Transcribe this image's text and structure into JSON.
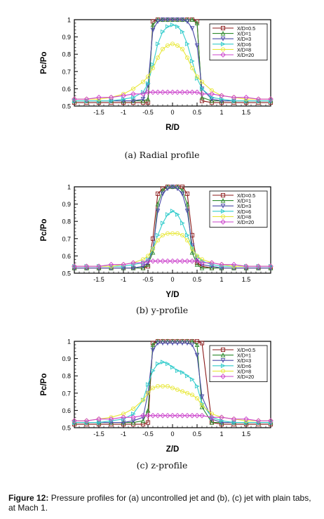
{
  "chart_data": [
    {
      "type": "line",
      "subcaption": "(a) Radial profile",
      "xlabel": "R/D",
      "ylabel": "Pc/Po",
      "xlim": [
        -2,
        2
      ],
      "ylim": [
        0.5,
        1.0
      ],
      "xticks": [
        "-1.5",
        "-1",
        "-0.5",
        "0",
        "0.5",
        "1",
        "1.5"
      ],
      "yticks": [
        "0.5",
        "0.6",
        "0.7",
        "0.8",
        "0.9",
        "1"
      ],
      "x": [
        -2.0,
        -1.75,
        -1.5,
        -1.25,
        -1.0,
        -0.8,
        -0.6,
        -0.5,
        -0.4,
        -0.3,
        -0.2,
        -0.1,
        0.0,
        0.1,
        0.2,
        0.3,
        0.4,
        0.5,
        0.6,
        0.8,
        1.0,
        1.25,
        1.5,
        1.75,
        2.0
      ],
      "legend_position": "top-right",
      "series": [
        {
          "name": "X/D=0.5",
          "color": "#8b1a1a",
          "marker": "square",
          "values": [
            0.52,
            0.52,
            0.52,
            0.52,
            0.52,
            0.52,
            0.52,
            0.52,
            0.99,
            1.0,
            1.0,
            1.0,
            1.0,
            1.0,
            1.0,
            1.0,
            1.0,
            0.99,
            0.53,
            0.52,
            0.52,
            0.52,
            0.52,
            0.52,
            0.52
          ]
        },
        {
          "name": "X/D=1",
          "color": "#2e8b2e",
          "marker": "triangle",
          "values": [
            0.53,
            0.53,
            0.53,
            0.53,
            0.53,
            0.53,
            0.53,
            0.54,
            0.97,
            1.0,
            1.0,
            1.0,
            1.0,
            1.0,
            1.0,
            1.0,
            1.0,
            0.98,
            0.55,
            0.53,
            0.53,
            0.53,
            0.53,
            0.53,
            0.53
          ]
        },
        {
          "name": "X/D=3",
          "color": "#4a4aa8",
          "marker": "triangle-down",
          "values": [
            0.53,
            0.53,
            0.53,
            0.53,
            0.53,
            0.53,
            0.54,
            0.62,
            0.94,
            0.99,
            1.0,
            1.0,
            1.0,
            1.0,
            1.0,
            0.99,
            0.95,
            0.85,
            0.6,
            0.54,
            0.53,
            0.53,
            0.53,
            0.53,
            0.53
          ]
        },
        {
          "name": "X/D=6",
          "color": "#33cccc",
          "marker": "triangle-right",
          "values": [
            0.53,
            0.53,
            0.53,
            0.53,
            0.54,
            0.55,
            0.58,
            0.63,
            0.74,
            0.86,
            0.93,
            0.96,
            0.97,
            0.96,
            0.93,
            0.86,
            0.76,
            0.66,
            0.6,
            0.55,
            0.54,
            0.53,
            0.53,
            0.53,
            0.53
          ]
        },
        {
          "name": "X/D=8",
          "color": "#e8e83c",
          "marker": "circle",
          "values": [
            0.54,
            0.54,
            0.54,
            0.55,
            0.57,
            0.6,
            0.64,
            0.67,
            0.72,
            0.78,
            0.83,
            0.85,
            0.86,
            0.85,
            0.83,
            0.78,
            0.72,
            0.67,
            0.64,
            0.59,
            0.56,
            0.55,
            0.54,
            0.54,
            0.54
          ]
        },
        {
          "name": "X/D=20",
          "color": "#cc44cc",
          "marker": "diamond",
          "values": [
            0.54,
            0.54,
            0.55,
            0.55,
            0.56,
            0.57,
            0.57,
            0.58,
            0.58,
            0.58,
            0.58,
            0.58,
            0.58,
            0.58,
            0.58,
            0.58,
            0.58,
            0.58,
            0.57,
            0.57,
            0.56,
            0.55,
            0.55,
            0.54,
            0.54
          ]
        }
      ]
    },
    {
      "type": "line",
      "subcaption": "(b) y-profile",
      "xlabel": "Y/D",
      "ylabel": "Pc/Po",
      "xlim": [
        -2,
        2
      ],
      "ylim": [
        0.5,
        1.0
      ],
      "xticks": [
        "-1.5",
        "-1",
        "-0.5",
        "0",
        "0.5",
        "1",
        "1.5"
      ],
      "yticks": [
        "0.5",
        "0.6",
        "0.7",
        "0.8",
        "0.9",
        "1"
      ],
      "x": [
        -2.0,
        -1.75,
        -1.5,
        -1.25,
        -1.0,
        -0.8,
        -0.6,
        -0.5,
        -0.4,
        -0.3,
        -0.2,
        -0.1,
        0.0,
        0.1,
        0.2,
        0.3,
        0.4,
        0.5,
        0.6,
        0.8,
        1.0,
        1.25,
        1.5,
        1.75,
        2.0
      ],
      "legend_position": "top-right",
      "series": [
        {
          "name": "X/D=0.5",
          "color": "#8b1a1a",
          "marker": "square",
          "values": [
            0.53,
            0.53,
            0.53,
            0.53,
            0.53,
            0.53,
            0.53,
            0.54,
            0.7,
            0.96,
            0.99,
            1.0,
            1.0,
            1.0,
            1.0,
            0.96,
            0.72,
            0.56,
            0.54,
            0.53,
            0.53,
            0.53,
            0.53,
            0.53,
            0.53
          ]
        },
        {
          "name": "X/D=1",
          "color": "#2e8b2e",
          "marker": "triangle",
          "values": [
            0.53,
            0.53,
            0.53,
            0.53,
            0.53,
            0.53,
            0.53,
            0.55,
            0.62,
            0.9,
            0.98,
            1.0,
            1.0,
            1.0,
            0.98,
            0.9,
            0.62,
            0.55,
            0.53,
            0.53,
            0.53,
            0.53,
            0.53,
            0.53,
            0.53
          ]
        },
        {
          "name": "X/D=3",
          "color": "#4a4aa8",
          "marker": "triangle-down",
          "values": [
            0.53,
            0.53,
            0.53,
            0.53,
            0.53,
            0.53,
            0.54,
            0.56,
            0.64,
            0.86,
            0.96,
            0.99,
            1.0,
            0.99,
            0.96,
            0.86,
            0.66,
            0.58,
            0.55,
            0.54,
            0.53,
            0.53,
            0.53,
            0.53,
            0.53
          ]
        },
        {
          "name": "X/D=6",
          "color": "#33cccc",
          "marker": "triangle-right",
          "values": [
            0.54,
            0.54,
            0.54,
            0.54,
            0.54,
            0.55,
            0.56,
            0.58,
            0.64,
            0.72,
            0.79,
            0.84,
            0.86,
            0.84,
            0.79,
            0.72,
            0.65,
            0.6,
            0.57,
            0.55,
            0.54,
            0.54,
            0.54,
            0.54,
            0.54
          ]
        },
        {
          "name": "X/D=8",
          "color": "#e8e83c",
          "marker": "circle",
          "values": [
            0.54,
            0.54,
            0.54,
            0.54,
            0.55,
            0.56,
            0.58,
            0.6,
            0.64,
            0.69,
            0.72,
            0.73,
            0.73,
            0.73,
            0.72,
            0.69,
            0.64,
            0.6,
            0.58,
            0.56,
            0.55,
            0.54,
            0.54,
            0.54,
            0.54
          ]
        },
        {
          "name": "X/D=20",
          "color": "#cc44cc",
          "marker": "diamond",
          "values": [
            0.54,
            0.54,
            0.54,
            0.55,
            0.55,
            0.56,
            0.56,
            0.57,
            0.57,
            0.57,
            0.57,
            0.57,
            0.57,
            0.57,
            0.57,
            0.57,
            0.57,
            0.57,
            0.56,
            0.56,
            0.55,
            0.55,
            0.54,
            0.54,
            0.54
          ]
        }
      ]
    },
    {
      "type": "line",
      "subcaption": "(c) z-profile",
      "xlabel": "Z/D",
      "ylabel": "Pc/Po",
      "xlim": [
        -2,
        2
      ],
      "ylim": [
        0.5,
        1.0
      ],
      "xticks": [
        "-1.5",
        "-1",
        "-0.5",
        "0",
        "0.5",
        "1",
        "1.5"
      ],
      "yticks": [
        "0.5",
        "0.6",
        "0.7",
        "0.8",
        "0.9",
        "1"
      ],
      "x": [
        -2.0,
        -1.75,
        -1.5,
        -1.25,
        -1.0,
        -0.8,
        -0.6,
        -0.5,
        -0.4,
        -0.3,
        -0.2,
        -0.1,
        0.0,
        0.1,
        0.2,
        0.3,
        0.4,
        0.5,
        0.6,
        0.8,
        1.0,
        1.25,
        1.5,
        1.75,
        2.0
      ],
      "legend_position": "top-right",
      "series": [
        {
          "name": "X/D=0.5",
          "color": "#8b1a1a",
          "marker": "square",
          "values": [
            0.52,
            0.52,
            0.52,
            0.52,
            0.52,
            0.52,
            0.52,
            0.53,
            0.99,
            1.0,
            1.0,
            1.0,
            1.0,
            1.0,
            1.0,
            1.0,
            1.0,
            1.0,
            0.99,
            0.53,
            0.52,
            0.52,
            0.52,
            0.52,
            0.52
          ]
        },
        {
          "name": "X/D=1",
          "color": "#2e8b2e",
          "marker": "triangle",
          "values": [
            0.53,
            0.53,
            0.53,
            0.53,
            0.53,
            0.53,
            0.54,
            0.6,
            0.98,
            1.0,
            1.0,
            1.0,
            1.0,
            1.0,
            1.0,
            1.0,
            1.0,
            0.98,
            0.62,
            0.53,
            0.53,
            0.53,
            0.53,
            0.53,
            0.53
          ]
        },
        {
          "name": "X/D=3",
          "color": "#4a4aa8",
          "marker": "triangle-down",
          "values": [
            0.53,
            0.53,
            0.53,
            0.53,
            0.53,
            0.54,
            0.56,
            0.7,
            0.95,
            0.99,
            0.99,
            0.99,
            0.99,
            0.99,
            0.99,
            0.99,
            0.98,
            0.92,
            0.68,
            0.55,
            0.53,
            0.53,
            0.53,
            0.53,
            0.53
          ]
        },
        {
          "name": "X/D=6",
          "color": "#33cccc",
          "marker": "triangle-right",
          "values": [
            0.53,
            0.53,
            0.53,
            0.54,
            0.55,
            0.58,
            0.66,
            0.75,
            0.83,
            0.87,
            0.88,
            0.87,
            0.85,
            0.83,
            0.82,
            0.8,
            0.78,
            0.74,
            0.64,
            0.56,
            0.54,
            0.53,
            0.53,
            0.53,
            0.53
          ]
        },
        {
          "name": "X/D=8",
          "color": "#e8e83c",
          "marker": "circle",
          "values": [
            0.54,
            0.54,
            0.55,
            0.56,
            0.58,
            0.61,
            0.66,
            0.7,
            0.73,
            0.74,
            0.74,
            0.74,
            0.73,
            0.72,
            0.71,
            0.7,
            0.69,
            0.67,
            0.63,
            0.58,
            0.56,
            0.55,
            0.54,
            0.54,
            0.54
          ]
        },
        {
          "name": "X/D=20",
          "color": "#cc44cc",
          "marker": "diamond",
          "values": [
            0.54,
            0.54,
            0.55,
            0.55,
            0.56,
            0.56,
            0.57,
            0.57,
            0.57,
            0.57,
            0.57,
            0.57,
            0.57,
            0.57,
            0.57,
            0.57,
            0.57,
            0.57,
            0.57,
            0.56,
            0.56,
            0.55,
            0.55,
            0.54,
            0.54
          ]
        }
      ]
    }
  ],
  "caption": {
    "label": "Figure 12:",
    "text": "Pressure profiles for (a) uncontrolled jet and (b), (c) jet with plain tabs, at Mach 1."
  }
}
